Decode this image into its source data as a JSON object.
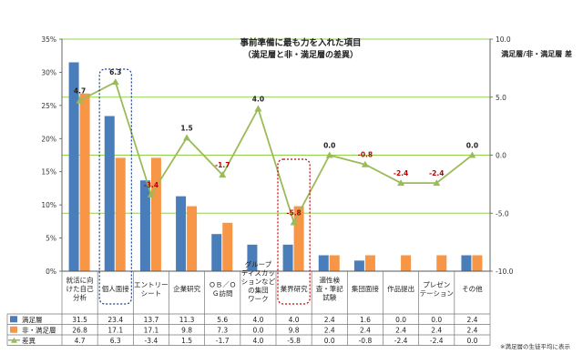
{
  "chart_data": {
    "type": "bar",
    "title": "事前準備に最も力を入れた項目",
    "subtitle": "（満足層と非・満足層の差異）",
    "y2_label": "満足層/非・満足層 差",
    "note": "※満足層の生徒平均に表示",
    "categories": [
      "就活に向けた自己分析",
      "個人面接",
      "エントリーシート",
      "企業研究",
      "ＯＢ／ＯＧ訪問",
      "グループディスカッションなどの集団ワーク",
      "業界研究",
      "適性検査・筆記試験",
      "集団面接",
      "作品提出",
      "プレゼンテーション",
      "その他"
    ],
    "category_lines": [
      [
        "就活に向",
        "けた自己",
        "分析"
      ],
      [
        "個人面接"
      ],
      [
        "エントリー",
        "シート"
      ],
      [
        "企業研究"
      ],
      [
        "ＯＢ／Ｏ",
        "Ｇ訪問"
      ],
      [
        "グループ",
        "ディスカッ",
        "ションなど",
        "の集団",
        "ワーク"
      ],
      [
        "業界研究"
      ],
      [
        "適性検",
        "査・筆記",
        "試験"
      ],
      [
        "集団面接"
      ],
      [
        "作品提出"
      ],
      [
        "プレゼン",
        "テーション"
      ],
      [
        "その他"
      ]
    ],
    "ylim": [
      0,
      35
    ],
    "y_ticks": [
      "0%",
      "5%",
      "10%",
      "15%",
      "20%",
      "25%",
      "30%",
      "35%"
    ],
    "y2lim": [
      -10,
      10
    ],
    "y2_ticks": [
      "-10.0",
      "-5.0",
      "0.0",
      "5.0",
      "10.0"
    ],
    "series": [
      {
        "name": "満足層",
        "color": "#4a7ebb",
        "values": [
          31.5,
          23.4,
          13.7,
          11.3,
          5.6,
          4.0,
          4.0,
          2.4,
          1.6,
          0.0,
          0.0,
          2.4
        ],
        "labels": [
          "31.5",
          "23.4",
          "13.7",
          "11.3",
          "5.6",
          "4.0",
          "4.0",
          "2.4",
          "1.6",
          "0.0",
          "0.0",
          "2.4"
        ]
      },
      {
        "name": "非・満足層",
        "color": "#f79646",
        "values": [
          26.8,
          17.1,
          17.1,
          9.8,
          7.3,
          0.0,
          9.8,
          2.4,
          2.4,
          2.4,
          2.4,
          2.4
        ],
        "labels": [
          "26.8",
          "17.1",
          "17.1",
          "9.8",
          "7.3",
          "0.0",
          "9.8",
          "2.4",
          "2.4",
          "2.4",
          "2.4",
          "2.4"
        ]
      },
      {
        "name": "差異",
        "color": "#9bbb59",
        "axis": "right",
        "values": [
          4.7,
          6.3,
          -3.4,
          1.5,
          -1.7,
          4.0,
          -5.8,
          0.0,
          -0.8,
          -2.4,
          -2.4,
          0.0
        ],
        "labels": [
          "4.7",
          "6.3",
          "-3.4",
          "1.5",
          "-1.7",
          "4.0",
          "-5.8",
          "0.0",
          "-0.8",
          "-2.4",
          "-2.4",
          "0.0"
        ]
      }
    ],
    "grid": true,
    "legend": "bottom-left-table",
    "highlighted_categories": [
      "個人面接",
      "業界研究"
    ],
    "colors": {
      "gridline": "#92d050",
      "negative_label": "#c00000",
      "highlight_box_blue": "#1f3b8c",
      "highlight_box_red": "#c00000"
    }
  }
}
